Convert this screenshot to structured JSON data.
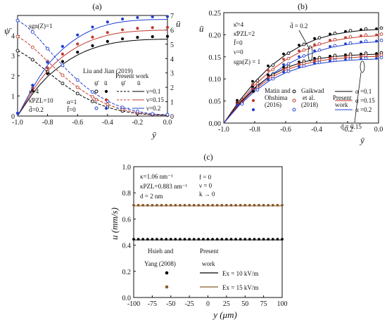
{
  "chart_data": [
    {
      "panel": "(a)",
      "type": "line",
      "xlabel": "ȳ",
      "ylabel_left": "ψ̄",
      "ylabel_right": "ū",
      "xlim": [
        -1.0,
        0.0
      ],
      "ylim_left": [
        0,
        5
      ],
      "ylim_right": [
        0,
        7
      ],
      "xticks": [
        "-1.0",
        "-0.8",
        "-0.6",
        "-0.4",
        "-0.2",
        "0.0"
      ],
      "yticks_left": [
        "0",
        "1",
        "2",
        "3",
        "4"
      ],
      "yticks_right": [
        "0",
        "1",
        "2",
        "3",
        "4",
        "5",
        "6",
        "7"
      ],
      "annotations": {
        "sgn": "sgn(Z)=1",
        "params": [
          "κ̄=4",
          "κ̄PZL=10",
          "d̄=0.2",
          "α=1",
          "f̄=0"
        ],
        "legend_ref": "Liu and Jian (2019)",
        "legend_present": "Present work",
        "legend_cols": [
          "ψ̄",
          "ū",
          "ψ̄",
          "ū"
        ],
        "legend_nu": [
          "ν=0.1",
          "ν=0.15",
          "ν=0.2"
        ]
      },
      "series": [
        {
          "name": "ν=0.1",
          "color": "#000000",
          "x": [
            -1.0,
            -0.95,
            -0.9,
            -0.85,
            -0.8,
            -0.75,
            -0.7,
            -0.65,
            -0.6,
            -0.55,
            -0.5,
            -0.45,
            -0.4,
            -0.35,
            -0.3,
            -0.25,
            -0.2,
            -0.15,
            -0.1,
            -0.05,
            0.0
          ],
          "psi": [
            3.25,
            3.05,
            2.8,
            2.5,
            2.2,
            1.9,
            1.62,
            1.36,
            1.12,
            0.91,
            0.73,
            0.57,
            0.44,
            0.33,
            0.25,
            0.18,
            0.13,
            0.09,
            0.06,
            0.05,
            0.04
          ],
          "u": [
            0,
            0.8,
            1.55,
            2.2,
            2.75,
            3.2,
            3.6,
            3.95,
            4.25,
            4.5,
            4.7,
            4.87,
            5.0,
            5.1,
            5.18,
            5.24,
            5.28,
            5.31,
            5.33,
            5.34,
            5.35
          ]
        },
        {
          "name": "ν=0.15",
          "color": "#c0392b",
          "x": [
            -1.0,
            -0.95,
            -0.9,
            -0.85,
            -0.8,
            -0.75,
            -0.7,
            -0.65,
            -0.6,
            -0.55,
            -0.5,
            -0.45,
            -0.4,
            -0.35,
            -0.3,
            -0.25,
            -0.2,
            -0.15,
            -0.1,
            -0.05,
            0.0
          ],
          "psi": [
            3.95,
            3.72,
            3.42,
            3.08,
            2.72,
            2.37,
            2.03,
            1.72,
            1.43,
            1.18,
            0.95,
            0.75,
            0.58,
            0.44,
            0.33,
            0.24,
            0.17,
            0.12,
            0.08,
            0.06,
            0.05
          ],
          "u": [
            0,
            0.9,
            1.75,
            2.5,
            3.15,
            3.68,
            4.12,
            4.5,
            4.82,
            5.08,
            5.3,
            5.48,
            5.62,
            5.73,
            5.81,
            5.87,
            5.91,
            5.94,
            5.96,
            5.97,
            5.98
          ]
        },
        {
          "name": "ν=0.2",
          "color": "#1f3fd1",
          "x": [
            -1.0,
            -0.95,
            -0.9,
            -0.85,
            -0.8,
            -0.75,
            -0.7,
            -0.65,
            -0.6,
            -0.55,
            -0.5,
            -0.45,
            -0.4,
            -0.35,
            -0.3,
            -0.25,
            -0.2,
            -0.15,
            -0.1,
            -0.05,
            0.0
          ],
          "psi": [
            4.75,
            4.52,
            4.18,
            3.78,
            3.35,
            2.93,
            2.52,
            2.14,
            1.79,
            1.48,
            1.2,
            0.96,
            0.75,
            0.57,
            0.43,
            0.32,
            0.23,
            0.16,
            0.11,
            0.08,
            0.07
          ],
          "u": [
            0,
            1.0,
            1.95,
            2.8,
            3.55,
            4.15,
            4.65,
            5.08,
            5.45,
            5.75,
            6.0,
            6.2,
            6.35,
            6.47,
            6.56,
            6.62,
            6.66,
            6.69,
            6.71,
            6.72,
            6.73
          ]
        }
      ]
    },
    {
      "panel": "(b)",
      "type": "line",
      "xlabel": "ȳ",
      "ylabel": "ū",
      "xlim": [
        -1.0,
        0.0
      ],
      "ylim": [
        0,
        0.25
      ],
      "xticks": [
        "-1.0",
        "-0.8",
        "-0.6",
        "-0.4",
        "-0.2",
        "0.0"
      ],
      "yticks": [
        "0.00",
        "0.05",
        "0.10",
        "0.15",
        "0.20",
        "0.25"
      ],
      "annotations": {
        "params": [
          "κ̄=4",
          "κ̄PZL=2",
          "f̄=0",
          "ν=0",
          "sgn(Z) = 1"
        ],
        "d1": "d̄ = 0.2",
        "d2": "d̄ = 0.15",
        "legend_cols": [
          "Matin and Ohshima (2016)",
          "Gaikwad et al. (2018)",
          "Present work"
        ],
        "legend_alpha": [
          "α =0.1",
          "α =0.15",
          "α =0.2"
        ]
      },
      "series": [
        {
          "name": "α=0.1, d̄=0.2",
          "color": "#000000",
          "y": [
            0,
            0.05,
            0.093,
            0.128,
            0.155,
            0.175,
            0.19,
            0.2,
            0.206,
            0.21,
            0.212
          ]
        },
        {
          "name": "α=0.15, d̄=0.2",
          "color": "#c0392b",
          "y": [
            0,
            0.046,
            0.086,
            0.118,
            0.143,
            0.162,
            0.176,
            0.186,
            0.192,
            0.196,
            0.198
          ]
        },
        {
          "name": "α=0.2, d̄=0.2",
          "color": "#1f3fd1",
          "y": [
            0,
            0.042,
            0.078,
            0.108,
            0.131,
            0.149,
            0.162,
            0.172,
            0.178,
            0.182,
            0.184
          ]
        },
        {
          "name": "α=0.1, d̄=0.15",
          "color": "#000000",
          "y": [
            0,
            0.044,
            0.08,
            0.107,
            0.125,
            0.137,
            0.145,
            0.15,
            0.153,
            0.155,
            0.156
          ]
        },
        {
          "name": "α=0.15, d̄=0.15",
          "color": "#c0392b",
          "y": [
            0,
            0.042,
            0.076,
            0.102,
            0.12,
            0.132,
            0.14,
            0.145,
            0.148,
            0.15,
            0.151
          ]
        },
        {
          "name": "α=0.2, d̄=0.15",
          "color": "#1f3fd1",
          "y": [
            0,
            0.04,
            0.072,
            0.097,
            0.114,
            0.126,
            0.134,
            0.139,
            0.142,
            0.144,
            0.145
          ]
        }
      ],
      "x": [
        -1.0,
        -0.9,
        -0.8,
        -0.7,
        -0.6,
        -0.5,
        -0.4,
        -0.3,
        -0.2,
        -0.1,
        0.0
      ]
    },
    {
      "panel": "(c)",
      "type": "line",
      "xlabel": "y (μm)",
      "ylabel": "u (mm/s)",
      "xlim": [
        -100,
        100
      ],
      "ylim": [
        0,
        1.0
      ],
      "xticks": [
        "-100",
        "-75",
        "-50",
        "-25",
        "0",
        "25",
        "50",
        "75",
        "100"
      ],
      "yticks": [
        "0.0",
        "0.2",
        "0.4",
        "0.6",
        "0.8",
        "1.0"
      ],
      "annotations": {
        "params": [
          "κ=1.06 nm⁻¹",
          "κPZL=0.883 nm⁻¹",
          "d = 2 nm",
          "f = 0",
          "ν = 0",
          "k → 0"
        ],
        "legend_ref": "Hsieh and Yang (2008)",
        "legend_present": "Present work",
        "legend_e": [
          "Ex = 10 kV/m",
          "Ex = 15 kV/m"
        ]
      },
      "series": [
        {
          "name": "Ex = 10 kV/m",
          "color": "#000000",
          "value": 0.44
        },
        {
          "name": "Ex = 15 kV/m",
          "color": "#8a5a2b",
          "value": 0.7
        }
      ]
    }
  ]
}
